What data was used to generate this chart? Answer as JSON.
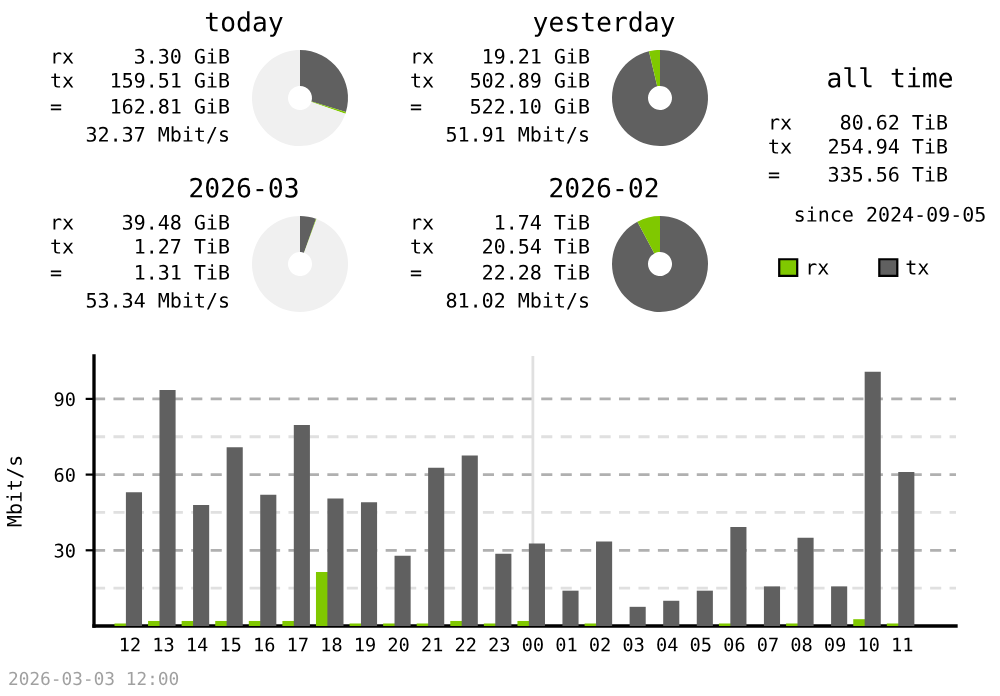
{
  "chart_data": [
    {
      "type": "donut",
      "title": "today",
      "categories": [
        null,
        null,
        null
      ],
      "values": [
        29.7,
        0.6,
        69.7
      ],
      "colors": [
        "#606060",
        "#80c800",
        "#f0f0f0"
      ],
      "annotations": [
        "rx",
        "3.30 GiB",
        "tx",
        "159.51 GiB",
        "=",
        "162.81 GiB",
        "32.37 Mbit/s"
      ]
    },
    {
      "type": "donut",
      "title": "yesterday",
      "categories": [
        null,
        null,
        null
      ],
      "values": [
        96.3,
        3.7,
        0
      ],
      "colors": [
        "#606060",
        "#80c800",
        "#f0f0f0"
      ],
      "annotations": [
        "rx",
        "19.21 GiB",
        "tx",
        "502.89 GiB",
        "=",
        "522.10 GiB",
        "51.91 Mbit/s"
      ]
    },
    {
      "type": "other",
      "title": "all time",
      "annotations": [
        "rx",
        "80.62 TiB",
        "tx",
        "254.94 TiB",
        "=",
        "335.56 TiB",
        "since 2024-09-05"
      ]
    },
    {
      "type": "donut",
      "title": "2026-03",
      "categories": [
        null,
        null,
        null
      ],
      "values": [
        5.4,
        0.2,
        94.4
      ],
      "colors": [
        "#606060",
        "#80c800",
        "#f0f0f0"
      ],
      "annotations": [
        "rx",
        "39.48 GiB",
        "tx",
        "1.27 TiB",
        "=",
        "1.31 TiB",
        "53.34 Mbit/s"
      ]
    },
    {
      "type": "donut",
      "title": "2026-02",
      "categories": [
        null,
        null,
        null
      ],
      "values": [
        92.2,
        7.8,
        0
      ],
      "colors": [
        "#606060",
        "#80c800",
        "#f0f0f0"
      ],
      "annotations": [
        "rx",
        "1.74 TiB",
        "tx",
        "20.54 TiB",
        "=",
        "22.28 TiB",
        "81.02 Mbit/s"
      ]
    },
    {
      "type": "bar",
      "ylabel": "Mbit/s",
      "legend": "top right",
      "grid": "y",
      "categories": [
        "12",
        "13",
        "14",
        "15",
        "16",
        "17",
        "18",
        "19",
        "20",
        "21",
        "22",
        "23",
        "00",
        "01",
        "02",
        "03",
        "04",
        "05",
        "06",
        "07",
        "08",
        "09",
        "10",
        "11"
      ],
      "series": [
        {
          "name": "rx",
          "color": "#80c800",
          "values": [
            1,
            2,
            2,
            2,
            2,
            2,
            21.4,
            1,
            1,
            1,
            2,
            1,
            2,
            0,
            1,
            0,
            0,
            0,
            1,
            0,
            1,
            0,
            2.7,
            1
          ]
        },
        {
          "name": "tx",
          "color": "#606060",
          "values": [
            53,
            93.5,
            48,
            70.8,
            52,
            79.7,
            50.5,
            49,
            27.8,
            62.7,
            67.6,
            28.6,
            32.7,
            14,
            33.5,
            7.6,
            10,
            14,
            39.2,
            15.7,
            35,
            15.7,
            100.8,
            61
          ]
        }
      ],
      "ylim": [
        0,
        107
      ],
      "yticks": [
        {
          "value": 15,
          "label": null
        },
        30,
        {
          "value": 45,
          "label": null
        },
        60,
        {
          "value": 75,
          "label": null
        },
        90
      ],
      "ref_lines": [
        {
          "axis": "x",
          "value": "00",
          "color": "#e0e0e0"
        }
      ],
      "annotations": [
        "2026-03-03 12:00"
      ]
    }
  ]
}
